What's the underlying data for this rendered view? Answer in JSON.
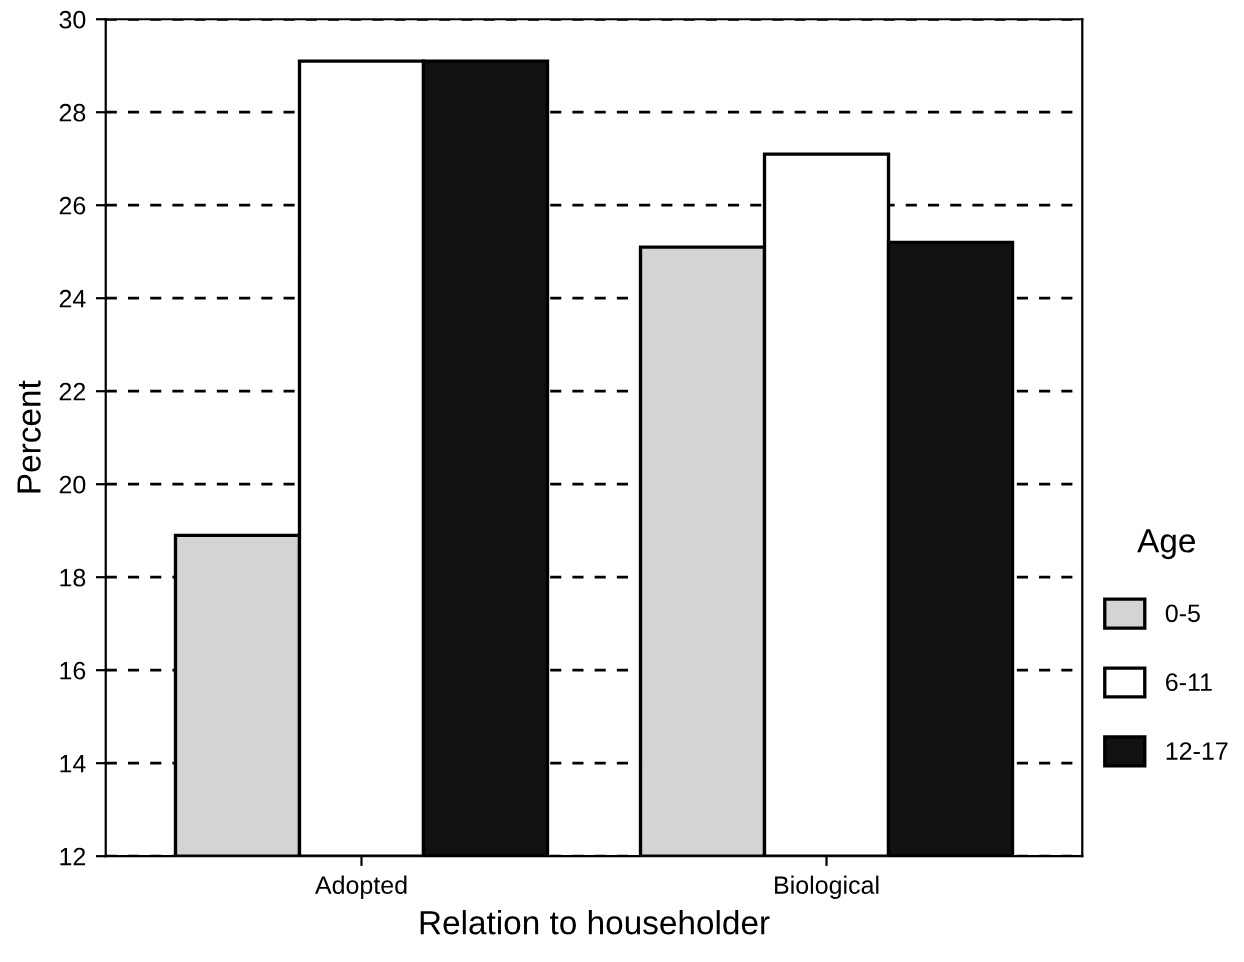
{
  "chart_data": {
    "type": "bar",
    "xlabel": "Relation to householder",
    "ylabel": "Percent",
    "legend_title": "Age",
    "categories": [
      "Adopted",
      "Biological"
    ],
    "series": [
      {
        "name": "0-5",
        "color": "#d4d4d4",
        "values": [
          18.9,
          25.1
        ]
      },
      {
        "name": "6-11",
        "color": "#ffffff",
        "values": [
          29.1,
          27.1
        ]
      },
      {
        "name": "12-17",
        "color": "#111111",
        "values": [
          29.1,
          25.2
        ]
      }
    ],
    "ylim": [
      12,
      30
    ],
    "yticks": [
      12,
      14,
      16,
      18,
      20,
      22,
      24,
      26,
      28,
      30
    ],
    "grid": "y",
    "legend": "right"
  }
}
